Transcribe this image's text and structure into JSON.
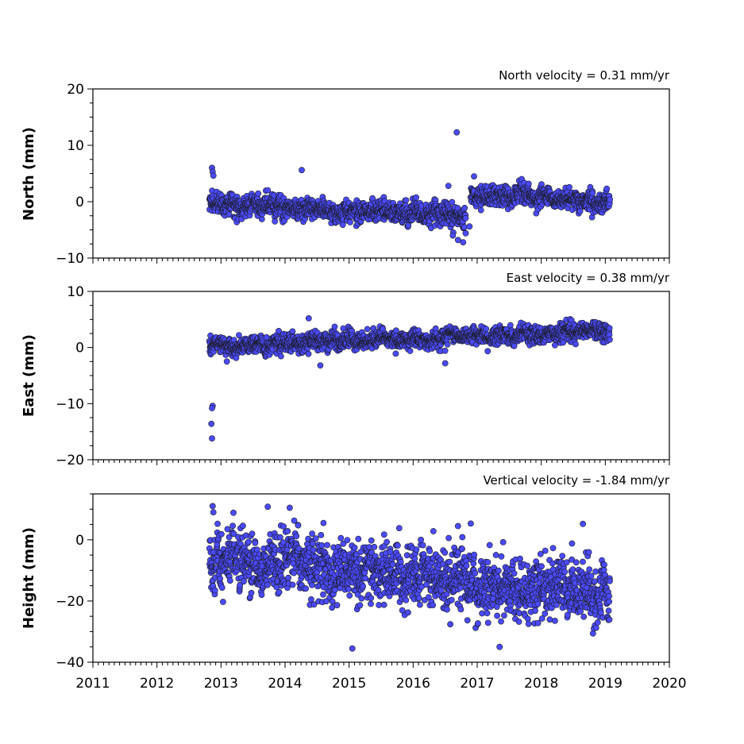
{
  "chart_data": [
    {
      "type": "scatter",
      "title": "North velocity = 0.31 mm/yr",
      "ylabel": "North (mm)",
      "xlim": [
        2011,
        2020
      ],
      "ylim": [
        -10,
        20
      ],
      "yticks": [
        -10,
        0,
        10,
        20
      ],
      "ytick_labels": [
        "−10",
        "0",
        "10",
        "20"
      ],
      "color": "#4a4aff",
      "grid": false,
      "series_segments": [
        {
          "x_start": 2012.82,
          "x_end": 2016.82,
          "y_start": 0.0,
          "y_end": -2.6,
          "noise": 1.1
        },
        {
          "x_start": 2016.9,
          "x_end": 2019.07,
          "y_start": 1.6,
          "y_end": 0.0,
          "noise": 1.0
        }
      ],
      "outliers": [
        {
          "x": 2012.86,
          "y": 6.0
        },
        {
          "x": 2012.87,
          "y": 5.3
        },
        {
          "x": 2012.88,
          "y": 4.6
        },
        {
          "x": 2014.26,
          "y": 5.6
        },
        {
          "x": 2016.68,
          "y": 12.3
        },
        {
          "x": 2016.55,
          "y": 2.8
        },
        {
          "x": 2016.95,
          "y": 4.5
        },
        {
          "x": 2016.62,
          "y": -6.0
        },
        {
          "x": 2016.7,
          "y": -6.8
        },
        {
          "x": 2016.78,
          "y": -7.2
        },
        {
          "x": 2016.82,
          "y": -5.6
        },
        {
          "x": 2016.88,
          "y": -4.4
        }
      ]
    },
    {
      "type": "scatter",
      "title": "East velocity = 0.38 mm/yr",
      "ylabel": "East (mm)",
      "xlim": [
        2011,
        2020
      ],
      "ylim": [
        -20,
        10
      ],
      "yticks": [
        -20,
        -10,
        0,
        10
      ],
      "ytick_labels": [
        "−20",
        "−10",
        "0",
        "10"
      ],
      "color": "#4a4aff",
      "grid": false,
      "series_segments": [
        {
          "x_start": 2012.82,
          "x_end": 2019.07,
          "y_start": 0.3,
          "y_end": 2.8,
          "noise": 0.9
        }
      ],
      "outliers": [
        {
          "x": 2012.87,
          "y": -10.4
        },
        {
          "x": 2012.86,
          "y": -10.8
        },
        {
          "x": 2012.85,
          "y": -13.6
        },
        {
          "x": 2012.86,
          "y": -16.2
        },
        {
          "x": 2014.37,
          "y": 5.2
        },
        {
          "x": 2014.55,
          "y": -3.2
        },
        {
          "x": 2016.5,
          "y": -2.8
        }
      ]
    },
    {
      "type": "scatter",
      "title": "Vertical velocity = -1.84 mm/yr",
      "ylabel": "Height (mm)",
      "xlim": [
        2011,
        2020
      ],
      "ylim": [
        -40,
        15
      ],
      "yticks": [
        -40,
        -20,
        0
      ],
      "ytick_labels": [
        "−40",
        "−20",
        "0"
      ],
      "xticks": [
        2011,
        2012,
        2013,
        2014,
        2015,
        2016,
        2017,
        2018,
        2019,
        2020
      ],
      "xtick_labels": [
        "2011",
        "2012",
        "2013",
        "2014",
        "2015",
        "2016",
        "2017",
        "2018",
        "2019",
        "2020"
      ],
      "color": "#4a4aff",
      "grid": false,
      "series_segments": [
        {
          "x_start": 2012.82,
          "x_end": 2019.07,
          "y_start": -6.0,
          "y_end": -17.5,
          "noise": 5.5
        }
      ],
      "outliers": [
        {
          "x": 2012.87,
          "y": 11.0
        },
        {
          "x": 2012.88,
          "y": 9.0
        },
        {
          "x": 2013.73,
          "y": 10.8
        },
        {
          "x": 2014.6,
          "y": 5.5
        },
        {
          "x": 2016.7,
          "y": 4.5
        },
        {
          "x": 2016.9,
          "y": 5.3
        },
        {
          "x": 2018.65,
          "y": 5.2
        },
        {
          "x": 2015.05,
          "y": -35.5
        },
        {
          "x": 2017.35,
          "y": -35.0
        }
      ]
    }
  ]
}
